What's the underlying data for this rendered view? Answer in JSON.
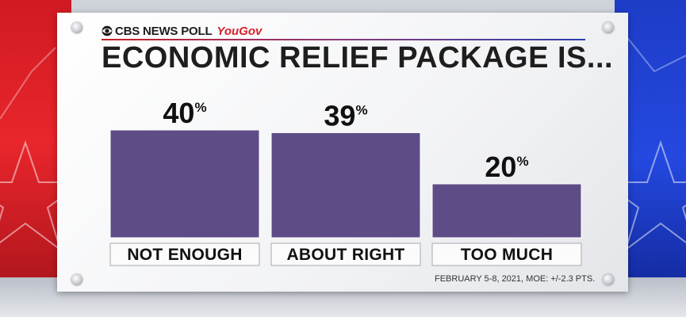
{
  "header": {
    "brand": "CBS NEWS POLL",
    "partner": "YouGov",
    "title": "ECONOMIC RELIEF PACKAGE IS..."
  },
  "footer": {
    "source": "FEBRUARY 5-8, 2021, MOE: +/-2.3 PTS."
  },
  "colors": {
    "bar": "#5e4c87",
    "accent_red": "#d6212b",
    "accent_blue": "#2a3fae"
  },
  "chart_data": {
    "type": "bar",
    "title": "ECONOMIC RELIEF PACKAGE IS...",
    "categories": [
      "NOT ENOUGH",
      "ABOUT RIGHT",
      "TOO MUCH"
    ],
    "values": [
      40,
      39,
      20
    ],
    "value_suffix": "%",
    "xlabel": "",
    "ylabel": "",
    "ylim": [
      0,
      40
    ],
    "grid": false,
    "legend": "none"
  }
}
